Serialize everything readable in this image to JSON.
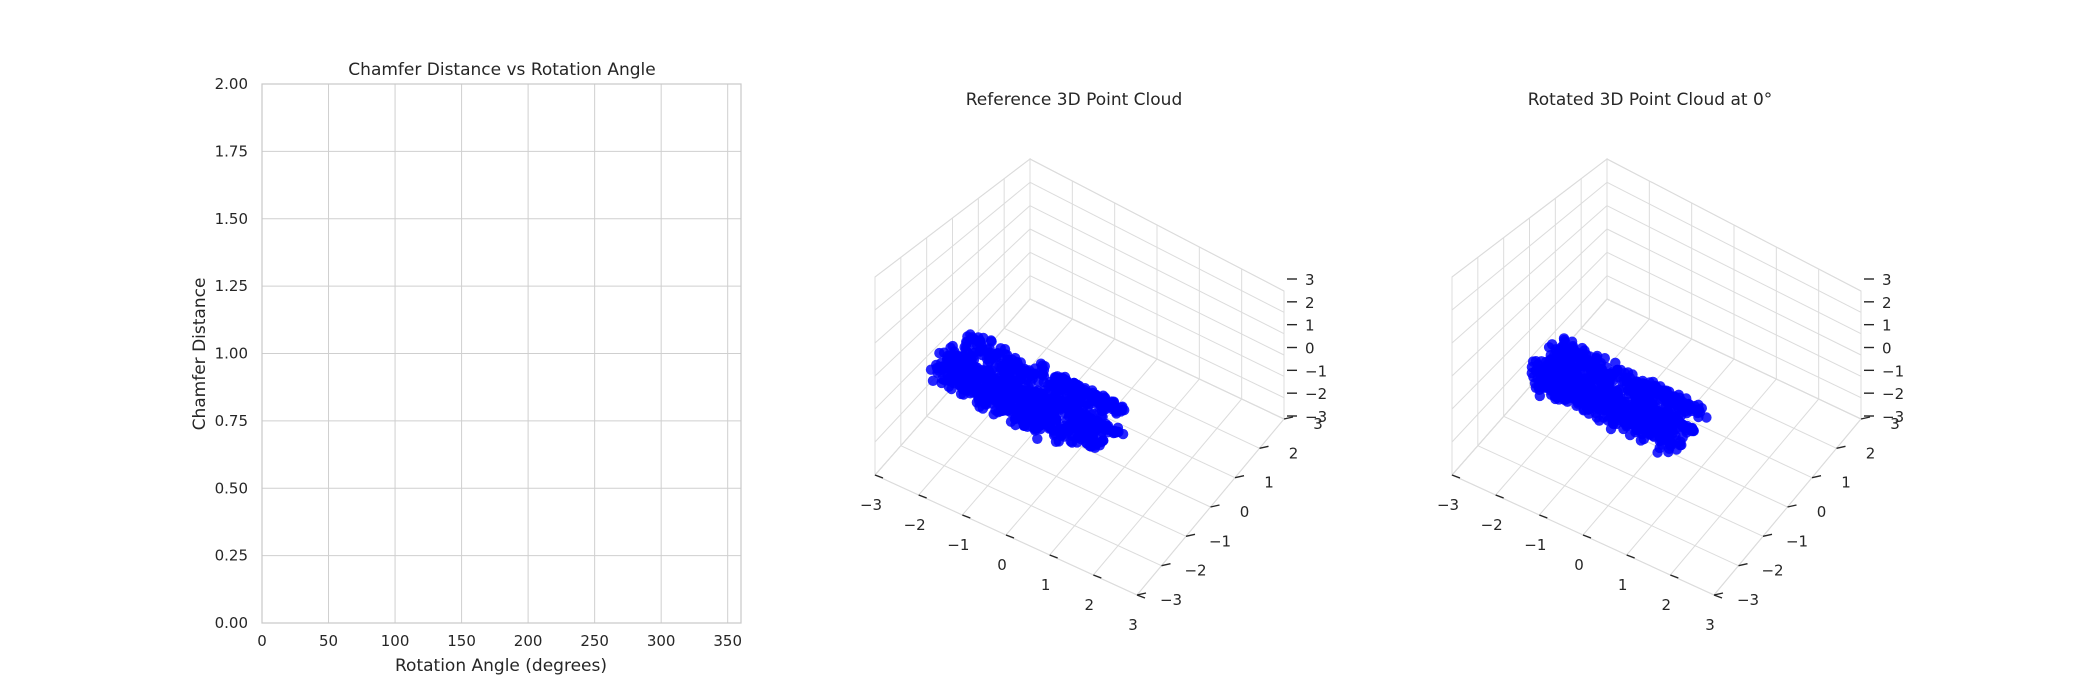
{
  "chart_data": [
    {
      "type": "line",
      "title": "Chamfer Distance vs Rotation Angle",
      "xlabel": "Rotation Angle (degrees)",
      "ylabel": "Chamfer Distance",
      "xlim": [
        0,
        360
      ],
      "ylim": [
        0,
        2
      ],
      "xticks": [
        "0",
        "50",
        "100",
        "150",
        "200",
        "250",
        "300",
        "350"
      ],
      "yticks": [
        "0.00",
        "0.25",
        "0.50",
        "0.75",
        "1.00",
        "1.25",
        "1.50",
        "1.75",
        "2.00"
      ],
      "grid": true,
      "series": []
    },
    {
      "type": "scatter",
      "projection": "3d",
      "title": "Reference 3D Point Cloud",
      "xlim": [
        -3,
        3
      ],
      "ylim": [
        -3,
        3
      ],
      "zlim": [
        -3,
        3
      ],
      "xticks": [
        "−3",
        "−2",
        "−1",
        "0",
        "1",
        "2",
        "3"
      ],
      "yticks": [
        "−3",
        "−2",
        "−1",
        "0",
        "1",
        "2",
        "3"
      ],
      "zticks": [
        "−3",
        "−2",
        "−1",
        "0",
        "1",
        "2",
        "3"
      ],
      "color": "#0000ff",
      "grid": true
    },
    {
      "type": "scatter",
      "projection": "3d",
      "title": "Rotated 3D Point Cloud at 0°",
      "xlim": [
        -3,
        3
      ],
      "ylim": [
        -3,
        3
      ],
      "zlim": [
        -3,
        3
      ],
      "xticks": [
        "−3",
        "−2",
        "−1",
        "0",
        "1",
        "2",
        "3"
      ],
      "yticks": [
        "−3",
        "−2",
        "−1",
        "0",
        "1",
        "2",
        "3"
      ],
      "zticks": [
        "−3",
        "−2",
        "−1",
        "0",
        "1",
        "2",
        "3"
      ],
      "color": "#0000ff",
      "grid": true
    }
  ]
}
